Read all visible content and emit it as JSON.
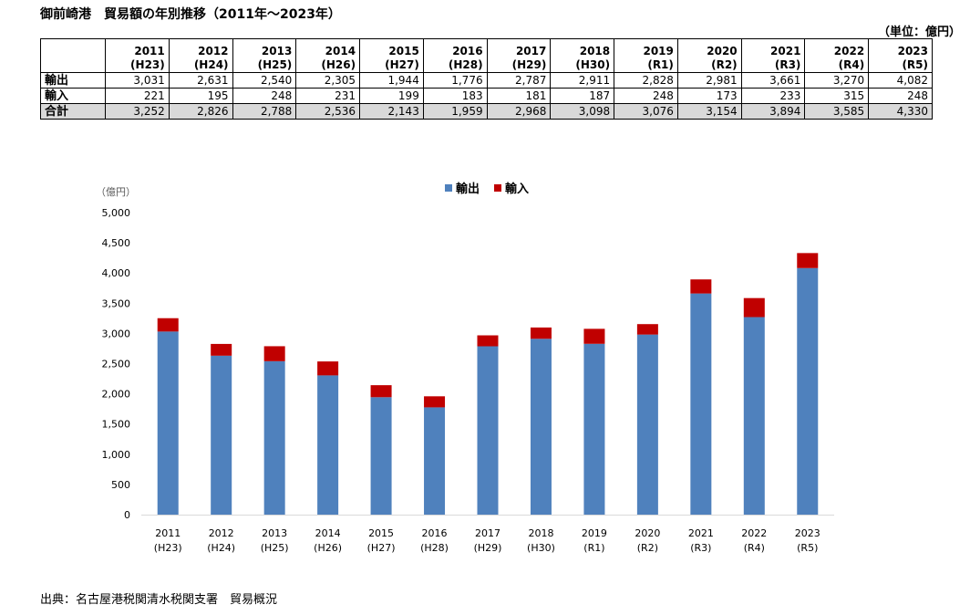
{
  "title": "御前崎港　貿易額の年別推移（2011年～2023年）",
  "unit_label": "（単位：億円）",
  "table": {
    "years": [
      "2011",
      "2012",
      "2013",
      "2014",
      "2015",
      "2016",
      "2017",
      "2018",
      "2019",
      "2020",
      "2021",
      "2022",
      "2023"
    ],
    "eras": [
      "(H23)",
      "(H24)",
      "(H25)",
      "(H26)",
      "(H27)",
      "(H28)",
      "(H29)",
      "(H30)",
      "(R1)",
      "(R2)",
      "(R3)",
      "(R4)",
      "(R5)"
    ],
    "rows": [
      {
        "label": "輸出",
        "values": [
          "3,031",
          "2,631",
          "2,540",
          "2,305",
          "1,944",
          "1,776",
          "2,787",
          "2,911",
          "2,828",
          "2,981",
          "3,661",
          "3,270",
          "4,082"
        ]
      },
      {
        "label": "輸入",
        "values": [
          "221",
          "195",
          "248",
          "231",
          "199",
          "183",
          "181",
          "187",
          "248",
          "173",
          "233",
          "315",
          "248"
        ]
      },
      {
        "label": "合計",
        "values": [
          "3,252",
          "2,826",
          "2,788",
          "2,536",
          "2,143",
          "1,959",
          "2,968",
          "3,098",
          "3,076",
          "3,154",
          "3,894",
          "3,585",
          "4,330"
        ]
      }
    ]
  },
  "chart_data": {
    "type": "bar",
    "stacked": true,
    "title": "",
    "ylabel": "（億円）",
    "xlabel": "",
    "ylim": [
      0,
      5000
    ],
    "ytick_step": 500,
    "ytick_labels": [
      "0",
      "500",
      "1,000",
      "1,500",
      "2,000",
      "2,500",
      "3,000",
      "3,500",
      "4,000",
      "4,500",
      "5,000"
    ],
    "categories": [
      "2011",
      "2012",
      "2013",
      "2014",
      "2015",
      "2016",
      "2017",
      "2018",
      "2019",
      "2020",
      "2021",
      "2022",
      "2023"
    ],
    "category_sublabels": [
      "(H23)",
      "(H24)",
      "(H25)",
      "(H26)",
      "(H27)",
      "(H28)",
      "(H29)",
      "(H30)",
      "(R1)",
      "(R2)",
      "(R3)",
      "(R4)",
      "(R5)"
    ],
    "series": [
      {
        "name": "輸出",
        "color": "#4f81bd",
        "values": [
          3031,
          2631,
          2540,
          2305,
          1944,
          1776,
          2787,
          2911,
          2828,
          2981,
          3661,
          3270,
          4082
        ]
      },
      {
        "name": "輸入",
        "color": "#c00000",
        "values": [
          221,
          195,
          248,
          231,
          199,
          183,
          181,
          187,
          248,
          173,
          233,
          315,
          248
        ]
      }
    ],
    "legend_position": "top",
    "grid": false
  },
  "source": "出典：名古屋港税関清水税関支署　貿易概況"
}
